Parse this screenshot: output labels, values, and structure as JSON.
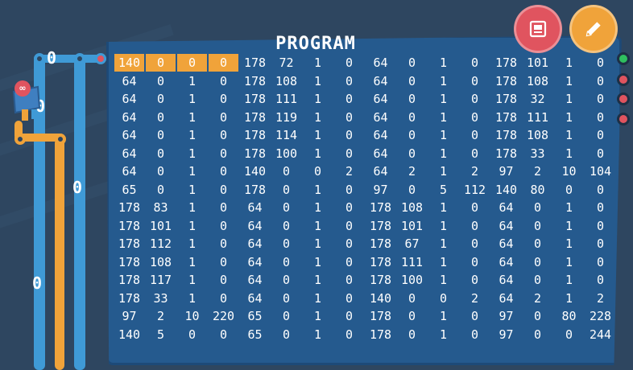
{
  "panel": {
    "title": "PROGRAM"
  },
  "program_rows": [
    [
      "140",
      "0",
      "0",
      "0",
      "178",
      "72",
      "1",
      "0",
      "64",
      "0",
      "1",
      "0",
      "178",
      "101",
      "1",
      "0"
    ],
    [
      "64",
      "0",
      "1",
      "0",
      "178",
      "108",
      "1",
      "0",
      "64",
      "0",
      "1",
      "0",
      "178",
      "108",
      "1",
      "0"
    ],
    [
      "64",
      "0",
      "1",
      "0",
      "178",
      "111",
      "1",
      "0",
      "64",
      "0",
      "1",
      "0",
      "178",
      "32",
      "1",
      "0"
    ],
    [
      "64",
      "0",
      "1",
      "0",
      "178",
      "119",
      "1",
      "0",
      "64",
      "0",
      "1",
      "0",
      "178",
      "111",
      "1",
      "0"
    ],
    [
      "64",
      "0",
      "1",
      "0",
      "178",
      "114",
      "1",
      "0",
      "64",
      "0",
      "1",
      "0",
      "178",
      "108",
      "1",
      "0"
    ],
    [
      "64",
      "0",
      "1",
      "0",
      "178",
      "100",
      "1",
      "0",
      "64",
      "0",
      "1",
      "0",
      "178",
      "33",
      "1",
      "0"
    ],
    [
      "64",
      "0",
      "1",
      "0",
      "140",
      "0",
      "0",
      "2",
      "64",
      "2",
      "1",
      "2",
      "97",
      "2",
      "10",
      "104"
    ],
    [
      "65",
      "0",
      "1",
      "0",
      "178",
      "0",
      "1",
      "0",
      "97",
      "0",
      "5",
      "112",
      "140",
      "80",
      "0",
      "0"
    ],
    [
      "178",
      "83",
      "1",
      "0",
      "64",
      "0",
      "1",
      "0",
      "178",
      "108",
      "1",
      "0",
      "64",
      "0",
      "1",
      "0"
    ],
    [
      "178",
      "101",
      "1",
      "0",
      "64",
      "0",
      "1",
      "0",
      "178",
      "101",
      "1",
      "0",
      "64",
      "0",
      "1",
      "0"
    ],
    [
      "178",
      "112",
      "1",
      "0",
      "64",
      "0",
      "1",
      "0",
      "178",
      "67",
      "1",
      "0",
      "64",
      "0",
      "1",
      "0"
    ],
    [
      "178",
      "108",
      "1",
      "0",
      "64",
      "0",
      "1",
      "0",
      "178",
      "111",
      "1",
      "0",
      "64",
      "0",
      "1",
      "0"
    ],
    [
      "178",
      "117",
      "1",
      "0",
      "64",
      "0",
      "1",
      "0",
      "178",
      "100",
      "1",
      "0",
      "64",
      "0",
      "1",
      "0"
    ],
    [
      "178",
      "33",
      "1",
      "0",
      "64",
      "0",
      "1",
      "0",
      "140",
      "0",
      "0",
      "2",
      "64",
      "2",
      "1",
      "2"
    ],
    [
      "97",
      "2",
      "10",
      "220",
      "65",
      "0",
      "1",
      "0",
      "178",
      "0",
      "1",
      "0",
      "97",
      "0",
      "80",
      "228"
    ],
    [
      "140",
      "5",
      "0",
      "0",
      "65",
      "0",
      "1",
      "0",
      "178",
      "0",
      "1",
      "0",
      "97",
      "0",
      "0",
      "244"
    ]
  ],
  "highlight": {
    "row": 0,
    "cols": [
      0,
      1,
      2,
      3
    ],
    "color": "#f0a33a"
  },
  "wire_values": {
    "top": "0",
    "chip": "0",
    "mid": "0",
    "bottom": "0"
  },
  "chip_badge": "∞",
  "buttons": {
    "save_icon": "save-icon",
    "edit_icon": "pencil-icon"
  },
  "colors": {
    "background": "#2e4660",
    "panel": "#255a8e",
    "wire_blue": "#3f9ad6",
    "wire_orange": "#f0a33a",
    "port_green": "#2fbf5f",
    "port_red": "#e0545f",
    "button_red": "#e0545f",
    "button_orange": "#f0a33a"
  }
}
